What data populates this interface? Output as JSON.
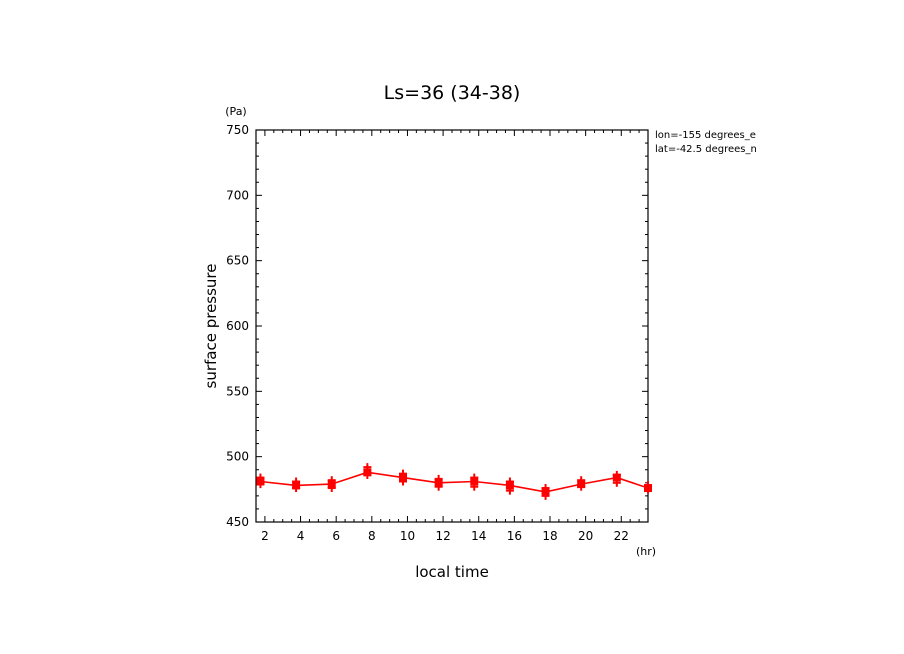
{
  "chart_data": {
    "type": "line",
    "title": "Ls=36 (34-38)",
    "xlabel": "local time",
    "ylabel": "surface pressure",
    "x_unit": "(hr)",
    "y_unit": "(Pa)",
    "xlim": [
      1.5,
      23.5
    ],
    "ylim": [
      450,
      750
    ],
    "x_ticks": [
      2,
      4,
      6,
      8,
      10,
      12,
      14,
      16,
      18,
      20,
      22
    ],
    "y_ticks": [
      450,
      500,
      550,
      600,
      650,
      700,
      750
    ],
    "annotations": [
      "lon=-155 degrees_e",
      "lat=-42.5 degrees_n"
    ],
    "color": "#ff0000",
    "series": [
      {
        "x": [
          1.75,
          3.75,
          5.75,
          7.75,
          9.75,
          11.75,
          13.75,
          15.75,
          17.75,
          19.75,
          21.75,
          23.5
        ],
        "values": [
          481,
          478,
          479,
          488,
          484,
          480,
          481,
          478,
          473,
          479,
          484,
          476
        ]
      }
    ],
    "scatter": {
      "markers": [
        {
          "x": 1.75,
          "y": [
            484,
            479
          ]
        },
        {
          "x": 3.75,
          "y": [
            481,
            476
          ]
        },
        {
          "x": 5.75,
          "y": [
            482,
            476
          ]
        },
        {
          "x": 7.75,
          "y": [
            492,
            486
          ]
        },
        {
          "x": 9.75,
          "y": [
            487,
            481
          ]
        },
        {
          "x": 11.75,
          "y": [
            483,
            477
          ]
        },
        {
          "x": 13.75,
          "y": [
            484,
            477
          ]
        },
        {
          "x": 15.75,
          "y": [
            481,
            474
          ]
        },
        {
          "x": 17.75,
          "y": [
            476,
            470
          ]
        },
        {
          "x": 19.75,
          "y": [
            482,
            477
          ]
        },
        {
          "x": 21.75,
          "y": [
            486,
            480
          ]
        },
        {
          "x": 23.5,
          "y": [
            478,
            475
          ]
        }
      ]
    }
  }
}
